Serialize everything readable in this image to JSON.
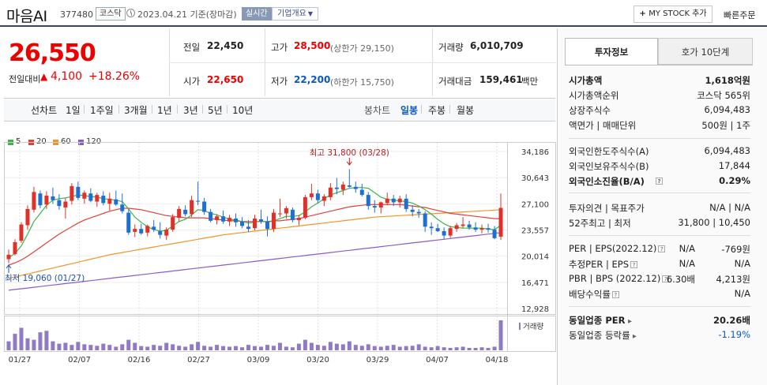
{
  "header": {
    "name": "마음AI",
    "code": "377480",
    "market": "코스닥",
    "date": "2023.04.21 기준(장마감)",
    "realtime": "실시간",
    "company": "기업개요",
    "mystock": "MY STOCK 추가",
    "order": "빠른주문"
  },
  "price": {
    "current": "26,550",
    "change_label": "전일대비",
    "change": "4,100",
    "change_pct": "+18.26%"
  },
  "summary": {
    "prev_label": "전일",
    "prev": "22,450",
    "high_label": "고가",
    "high": "28,500",
    "upper_limit": "(상한가 29,150)",
    "volume_label": "거래량",
    "volume": "6,010,709",
    "open_label": "시가",
    "open": "22,650",
    "low_label": "저가",
    "low": "22,200",
    "lower_limit": "(하한가 15,750)",
    "amount_label": "거래대금",
    "amount": "159,461",
    "amount_unit": "백만"
  },
  "toolbar": {
    "line_chart": "선차트",
    "periods": [
      "1일",
      "1주일",
      "3개월",
      "1년",
      "3년",
      "5년",
      "10년"
    ],
    "candle_chart": "봉차트",
    "candles": [
      "일봉",
      "주봉",
      "월봉"
    ],
    "active_candle": "일봉"
  },
  "legend": [
    {
      "label": "5",
      "color": "#3cb54a"
    },
    {
      "label": "20",
      "color": "#e0403a"
    },
    {
      "label": "60",
      "color": "#f0952a"
    },
    {
      "label": "120",
      "color": "#8b5cc8"
    }
  ],
  "chart_data": {
    "type": "candlestick",
    "y_ticks": [
      "34,186",
      "30,643",
      "27,100",
      "23,557",
      "20,014",
      "16,471",
      "12,928"
    ],
    "ylim": [
      12928,
      34186
    ],
    "x_ticks": [
      "01/27",
      "02/07",
      "02/16",
      "02/27",
      "03/09",
      "03/20",
      "03/29",
      "04/07",
      "04/18"
    ],
    "high_annotation": "최고 31,800 (03/28)",
    "low_annotation": "최저 19,060 (01/27)",
    "volume_label": "거래량",
    "candles": [
      {
        "o": 19600,
        "h": 20900,
        "l": 19060,
        "c": 20200
      },
      {
        "o": 20300,
        "h": 22300,
        "l": 20100,
        "c": 21900
      },
      {
        "o": 22100,
        "h": 24600,
        "l": 21800,
        "c": 24300
      },
      {
        "o": 24200,
        "h": 26900,
        "l": 23600,
        "c": 26400
      },
      {
        "o": 26300,
        "h": 29400,
        "l": 25900,
        "c": 28700
      },
      {
        "o": 28500,
        "h": 28900,
        "l": 26500,
        "c": 26900
      },
      {
        "o": 27000,
        "h": 28800,
        "l": 26400,
        "c": 28200
      },
      {
        "o": 28100,
        "h": 29300,
        "l": 27100,
        "c": 27600
      },
      {
        "o": 27600,
        "h": 28400,
        "l": 26300,
        "c": 26800
      },
      {
        "o": 26600,
        "h": 27900,
        "l": 25100,
        "c": 27400
      },
      {
        "o": 27500,
        "h": 29900,
        "l": 27000,
        "c": 29500
      },
      {
        "o": 29400,
        "h": 30100,
        "l": 27600,
        "c": 27900
      },
      {
        "o": 27800,
        "h": 28900,
        "l": 27100,
        "c": 28600
      },
      {
        "o": 28500,
        "h": 29200,
        "l": 27300,
        "c": 27500
      },
      {
        "o": 27400,
        "h": 28600,
        "l": 26700,
        "c": 28300
      },
      {
        "o": 28200,
        "h": 28800,
        "l": 26900,
        "c": 27200
      },
      {
        "o": 27100,
        "h": 28600,
        "l": 26200,
        "c": 27800
      },
      {
        "o": 27700,
        "h": 28900,
        "l": 26800,
        "c": 27000
      },
      {
        "o": 27000,
        "h": 28500,
        "l": 25800,
        "c": 26100
      },
      {
        "o": 25900,
        "h": 26400,
        "l": 22900,
        "c": 23200
      },
      {
        "o": 23300,
        "h": 24300,
        "l": 22600,
        "c": 23700
      },
      {
        "o": 23700,
        "h": 24400,
        "l": 22900,
        "c": 23100
      },
      {
        "o": 23200,
        "h": 24300,
        "l": 22700,
        "c": 24100
      },
      {
        "o": 24000,
        "h": 24900,
        "l": 23300,
        "c": 23600
      },
      {
        "o": 23400,
        "h": 24600,
        "l": 22400,
        "c": 22900
      },
      {
        "o": 22800,
        "h": 23900,
        "l": 22200,
        "c": 23600
      },
      {
        "o": 23600,
        "h": 25700,
        "l": 23300,
        "c": 25300
      },
      {
        "o": 25200,
        "h": 26800,
        "l": 24700,
        "c": 26400
      },
      {
        "o": 26300,
        "h": 26900,
        "l": 25400,
        "c": 25700
      },
      {
        "o": 25700,
        "h": 28200,
        "l": 25300,
        "c": 27600
      },
      {
        "o": 27500,
        "h": 30100,
        "l": 26900,
        "c": 27400
      },
      {
        "o": 27400,
        "h": 27900,
        "l": 25600,
        "c": 26000
      },
      {
        "o": 26000,
        "h": 26400,
        "l": 24600,
        "c": 24800
      },
      {
        "o": 24900,
        "h": 25700,
        "l": 24300,
        "c": 25400
      },
      {
        "o": 25400,
        "h": 26200,
        "l": 24400,
        "c": 24700
      },
      {
        "o": 24700,
        "h": 25600,
        "l": 24100,
        "c": 25200
      },
      {
        "o": 25100,
        "h": 25800,
        "l": 24000,
        "c": 24600
      },
      {
        "o": 24700,
        "h": 25300,
        "l": 23800,
        "c": 24100
      },
      {
        "o": 24000,
        "h": 24900,
        "l": 23300,
        "c": 23700
      },
      {
        "o": 23800,
        "h": 25600,
        "l": 23500,
        "c": 25100
      },
      {
        "o": 25000,
        "h": 26300,
        "l": 24400,
        "c": 24700
      },
      {
        "o": 24700,
        "h": 25400,
        "l": 22700,
        "c": 23700
      },
      {
        "o": 23700,
        "h": 26400,
        "l": 23300,
        "c": 25900
      },
      {
        "o": 25800,
        "h": 27800,
        "l": 25300,
        "c": 25800
      },
      {
        "o": 25800,
        "h": 26800,
        "l": 25100,
        "c": 26500
      },
      {
        "o": 26300,
        "h": 26600,
        "l": 24600,
        "c": 24900
      },
      {
        "o": 24900,
        "h": 25600,
        "l": 24200,
        "c": 25200
      },
      {
        "o": 25200,
        "h": 28300,
        "l": 25000,
        "c": 28000
      },
      {
        "o": 28000,
        "h": 29800,
        "l": 27600,
        "c": 28500
      },
      {
        "o": 28500,
        "h": 29000,
        "l": 27200,
        "c": 27600
      },
      {
        "o": 27500,
        "h": 28400,
        "l": 26800,
        "c": 28100
      },
      {
        "o": 28000,
        "h": 29900,
        "l": 27600,
        "c": 29300
      },
      {
        "o": 29300,
        "h": 30600,
        "l": 28400,
        "c": 29100
      },
      {
        "o": 29000,
        "h": 30100,
        "l": 28300,
        "c": 29700
      },
      {
        "o": 29600,
        "h": 31800,
        "l": 29300,
        "c": 29400
      },
      {
        "o": 29400,
        "h": 30100,
        "l": 28600,
        "c": 29100
      },
      {
        "o": 29000,
        "h": 29800,
        "l": 28100,
        "c": 28300
      },
      {
        "o": 28300,
        "h": 28700,
        "l": 26300,
        "c": 26800
      },
      {
        "o": 26800,
        "h": 27600,
        "l": 25900,
        "c": 26600
      },
      {
        "o": 26600,
        "h": 27400,
        "l": 25800,
        "c": 27300
      },
      {
        "o": 27200,
        "h": 28600,
        "l": 26900,
        "c": 27800
      },
      {
        "o": 27800,
        "h": 28300,
        "l": 26800,
        "c": 27300
      },
      {
        "o": 27300,
        "h": 28200,
        "l": 26600,
        "c": 27800
      },
      {
        "o": 27800,
        "h": 28400,
        "l": 26000,
        "c": 26400
      },
      {
        "o": 26300,
        "h": 26900,
        "l": 25400,
        "c": 26000
      },
      {
        "o": 26000,
        "h": 26400,
        "l": 25200,
        "c": 25800
      },
      {
        "o": 25800,
        "h": 26100,
        "l": 23300,
        "c": 24000
      },
      {
        "o": 24000,
        "h": 24600,
        "l": 22900,
        "c": 23800
      },
      {
        "o": 23800,
        "h": 24400,
        "l": 23300,
        "c": 23400
      },
      {
        "o": 23400,
        "h": 23900,
        "l": 22300,
        "c": 22800
      },
      {
        "o": 22800,
        "h": 24100,
        "l": 22500,
        "c": 23800
      },
      {
        "o": 23700,
        "h": 24500,
        "l": 23300,
        "c": 24200
      },
      {
        "o": 24100,
        "h": 25300,
        "l": 23800,
        "c": 24300
      },
      {
        "o": 24300,
        "h": 24800,
        "l": 23600,
        "c": 23900
      },
      {
        "o": 23900,
        "h": 24600,
        "l": 23300,
        "c": 23600
      },
      {
        "o": 23600,
        "h": 24300,
        "l": 23100,
        "c": 23800
      },
      {
        "o": 23800,
        "h": 24400,
        "l": 23200,
        "c": 23600
      },
      {
        "o": 23600,
        "h": 24100,
        "l": 22300,
        "c": 22450
      },
      {
        "o": 22650,
        "h": 28500,
        "l": 22200,
        "c": 26550
      }
    ],
    "volume": [
      30,
      55,
      75,
      40,
      35,
      60,
      65,
      30,
      22,
      25,
      18,
      28,
      20,
      18,
      15,
      22,
      18,
      12,
      20,
      35,
      25,
      14,
      12,
      18,
      15,
      25,
      20,
      15,
      12,
      20,
      28,
      15,
      12,
      18,
      14,
      12,
      14,
      10,
      18,
      14,
      12,
      18,
      15,
      25,
      12,
      10,
      22,
      35,
      25,
      18,
      15,
      28,
      22,
      20,
      30,
      18,
      15,
      20,
      14,
      12,
      15,
      18,
      12,
      14,
      15,
      20,
      12,
      10,
      14,
      10,
      8,
      10,
      12,
      8,
      8,
      10,
      8,
      12,
      100
    ],
    "ma5": [
      19800,
      20400,
      21400,
      23000,
      24700,
      25800,
      26900,
      27600,
      27800,
      27900,
      28100,
      28300,
      28200,
      28100,
      28000,
      27800,
      27700,
      27600,
      27400,
      26400,
      25300,
      24600,
      24000,
      23600,
      23400,
      23500,
      24100,
      24700,
      25000,
      25600,
      26300,
      26200,
      25800,
      25600,
      25300,
      25000,
      24900,
      24700,
      24500,
      24600,
      24800,
      24600,
      24800,
      25100,
      25400,
      25400,
      25500,
      26000,
      26700,
      27200,
      27800,
      28300,
      28600,
      28900,
      29200,
      29300,
      29300,
      29200,
      28600,
      28000,
      27700,
      27600,
      27500,
      27400,
      27200,
      26800,
      26300,
      25700,
      25000,
      24400,
      24000,
      23900,
      23800,
      23800,
      23800,
      23800,
      23700,
      23600,
      24200
    ],
    "ma20": [
      18800,
      19100,
      19500,
      20000,
      20600,
      21200,
      21800,
      22400,
      23000,
      23500,
      24000,
      24500,
      24900,
      25200,
      25500,
      25800,
      26100,
      26300,
      26500,
      26500,
      26400,
      26300,
      26100,
      25900,
      25700,
      25500,
      25400,
      25300,
      25200,
      25200,
      25200,
      25200,
      25100,
      25000,
      24900,
      24800,
      24800,
      24700,
      24700,
      24700,
      24700,
      24700,
      24800,
      24800,
      24900,
      25000,
      25100,
      25300,
      25500,
      25700,
      25900,
      26100,
      26300,
      26500,
      26700,
      26800,
      26900,
      27000,
      27000,
      27000,
      27000,
      27000,
      27000,
      26900,
      26800,
      26700,
      26600,
      26400,
      26200,
      26000,
      25800,
      25700,
      25600,
      25500,
      25400,
      25300,
      25200,
      25100,
      25100
    ],
    "ma60": [
      17000,
      17200,
      17400,
      17600,
      17800,
      18000,
      18200,
      18400,
      18600,
      18800,
      19000,
      19200,
      19400,
      19600,
      19800,
      20000,
      20200,
      20350,
      20500,
      20650,
      20800,
      20950,
      21100,
      21250,
      21400,
      21550,
      21700,
      21850,
      22000,
      22150,
      22300,
      22450,
      22600,
      22750,
      22900,
      23000,
      23100,
      23200,
      23300,
      23400,
      23500,
      23600,
      23700,
      23800,
      23900,
      24000,
      24100,
      24200,
      24300,
      24400,
      24500,
      24600,
      24700,
      24800,
      24900,
      25000,
      25100,
      25200,
      25300,
      25350,
      25400,
      25450,
      25500,
      25550,
      25600,
      25650,
      25700,
      25750,
      25800,
      25850,
      25900,
      25950,
      26000,
      26050,
      26100,
      26150,
      26200,
      26250,
      26300
    ],
    "ma120": [
      15400,
      15500,
      15600,
      15700,
      15800,
      15900,
      16000,
      16100,
      16200,
      16300,
      16400,
      16500,
      16600,
      16700,
      16800,
      16900,
      17000,
      17100,
      17200,
      17300,
      17400,
      17500,
      17600,
      17700,
      17800,
      17900,
      18000,
      18100,
      18200,
      18300,
      18400,
      18500,
      18600,
      18700,
      18800,
      18900,
      19000,
      19100,
      19200,
      19300,
      19400,
      19500,
      19600,
      19700,
      19800,
      19900,
      20000,
      20100,
      20200,
      20300,
      20400,
      20500,
      20600,
      20700,
      20800,
      20900,
      21000,
      21100,
      21200,
      21300,
      21400,
      21500,
      21600,
      21700,
      21800,
      21900,
      22000,
      22100,
      22200,
      22300,
      22400,
      22500,
      22600,
      22700,
      22800,
      22900,
      23000,
      23100,
      23200
    ]
  },
  "right_panel": {
    "tab_active": "투자정보",
    "tab_other": "호가 10단계",
    "rows1": [
      {
        "l": "시가총액",
        "r": "1,618억원",
        "bold": true
      },
      {
        "l": "시가총액순위",
        "r": "코스닥 565위"
      },
      {
        "l": "상장주식수",
        "r": "6,094,483"
      },
      {
        "l": "액면가 | 매매단위",
        "r": "500원 | 1주"
      }
    ],
    "rows2": [
      {
        "l": "외국인한도주식수(A)",
        "r": "6,094,483"
      },
      {
        "l": "외국인보유주식수(B)",
        "r": "17,844"
      },
      {
        "l": "외국인소진율(B/A)",
        "r": "0.29%",
        "bold": true
      }
    ],
    "opinion_label": "투자의견 | 목표주가",
    "opinion_value": "N/A | N/A",
    "week52_label": "52주최고 | 최저",
    "week52_value": "31,800 | 10,450",
    "per_label": "PER | EPS(2022.12)",
    "per_value": "N/A",
    "eps_value": "-769원",
    "est_label": "추정PER | EPS",
    "est_per": "N/A",
    "est_eps": "N/A",
    "pbr_label": "PBR | BPS (2022.12)",
    "pbr_value": "6.30배",
    "bps_value": "4,213원",
    "div_label": "배당수익률",
    "div_value": "N/A",
    "sector_per_label": "동일업종 PER",
    "sector_per_value": "20.26배",
    "sector_chg_label": "동일업종 등락률",
    "sector_chg_value": "-1.19%"
  }
}
